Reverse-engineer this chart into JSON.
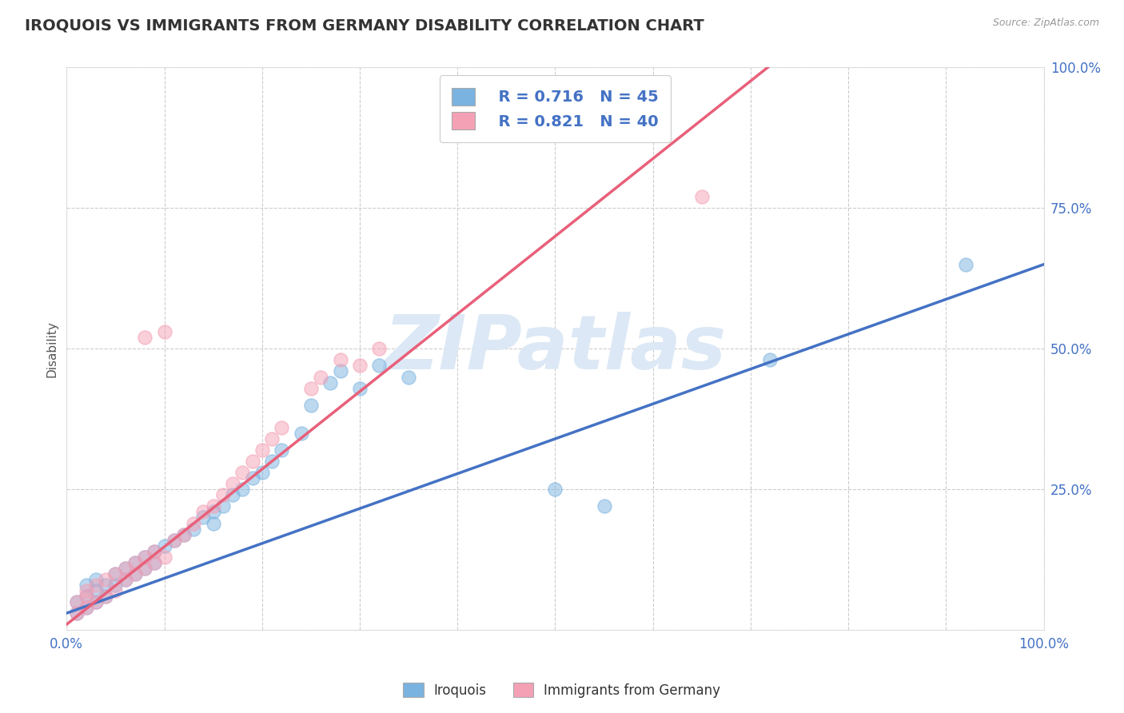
{
  "title": "IROQUOIS VS IMMIGRANTS FROM GERMANY DISABILITY CORRELATION CHART",
  "source_text": "Source: ZipAtlas.com",
  "ylabel": "Disability",
  "xlim": [
    0,
    1.0
  ],
  "ylim": [
    0,
    1.0
  ],
  "xticks": [
    0.0,
    0.1,
    0.2,
    0.3,
    0.4,
    0.5,
    0.6,
    0.7,
    0.8,
    0.9,
    1.0
  ],
  "yticks": [
    0.0,
    0.25,
    0.5,
    0.75,
    1.0
  ],
  "grid_color": "#cccccc",
  "background_color": "#ffffff",
  "blue_color": "#7ab3e0",
  "pink_color": "#f4a0b5",
  "blue_line_color": "#4472c4",
  "pink_line_color": "#e8607a",
  "legend_r_blue": "R = 0.716",
  "legend_n_blue": "N = 45",
  "legend_r_pink": "R = 0.821",
  "legend_n_pink": "N = 40",
  "legend_label_blue": "Iroquois",
  "legend_label_pink": "Immigrants from Germany",
  "blue_slope": 0.62,
  "blue_intercept": 0.03,
  "pink_slope": 1.38,
  "pink_intercept": 0.01,
  "iroquois_x": [
    0.01,
    0.01,
    0.02,
    0.02,
    0.02,
    0.03,
    0.03,
    0.03,
    0.04,
    0.04,
    0.05,
    0.05,
    0.06,
    0.06,
    0.07,
    0.07,
    0.08,
    0.08,
    0.09,
    0.09,
    0.1,
    0.11,
    0.12,
    0.13,
    0.14,
    0.15,
    0.15,
    0.16,
    0.17,
    0.18,
    0.19,
    0.2,
    0.21,
    0.22,
    0.24,
    0.25,
    0.27,
    0.28,
    0.3,
    0.32,
    0.35,
    0.5,
    0.55,
    0.72,
    0.92
  ],
  "iroquois_y": [
    0.03,
    0.05,
    0.04,
    0.06,
    0.08,
    0.05,
    0.07,
    0.09,
    0.06,
    0.08,
    0.08,
    0.1,
    0.09,
    0.11,
    0.1,
    0.12,
    0.11,
    0.13,
    0.12,
    0.14,
    0.15,
    0.16,
    0.17,
    0.18,
    0.2,
    0.19,
    0.21,
    0.22,
    0.24,
    0.25,
    0.27,
    0.28,
    0.3,
    0.32,
    0.35,
    0.4,
    0.44,
    0.46,
    0.43,
    0.47,
    0.45,
    0.25,
    0.22,
    0.48,
    0.65
  ],
  "germany_x": [
    0.01,
    0.01,
    0.02,
    0.02,
    0.02,
    0.03,
    0.03,
    0.04,
    0.04,
    0.05,
    0.05,
    0.06,
    0.06,
    0.07,
    0.07,
    0.08,
    0.08,
    0.09,
    0.09,
    0.1,
    0.11,
    0.12,
    0.13,
    0.14,
    0.15,
    0.16,
    0.17,
    0.18,
    0.19,
    0.2,
    0.21,
    0.22,
    0.25,
    0.26,
    0.28,
    0.3,
    0.32,
    0.65,
    0.08,
    0.1
  ],
  "germany_y": [
    0.03,
    0.05,
    0.04,
    0.06,
    0.07,
    0.05,
    0.08,
    0.06,
    0.09,
    0.07,
    0.1,
    0.09,
    0.11,
    0.1,
    0.12,
    0.11,
    0.13,
    0.12,
    0.14,
    0.13,
    0.16,
    0.17,
    0.19,
    0.21,
    0.22,
    0.24,
    0.26,
    0.28,
    0.3,
    0.32,
    0.34,
    0.36,
    0.43,
    0.45,
    0.48,
    0.47,
    0.5,
    0.77,
    0.52,
    0.53
  ]
}
